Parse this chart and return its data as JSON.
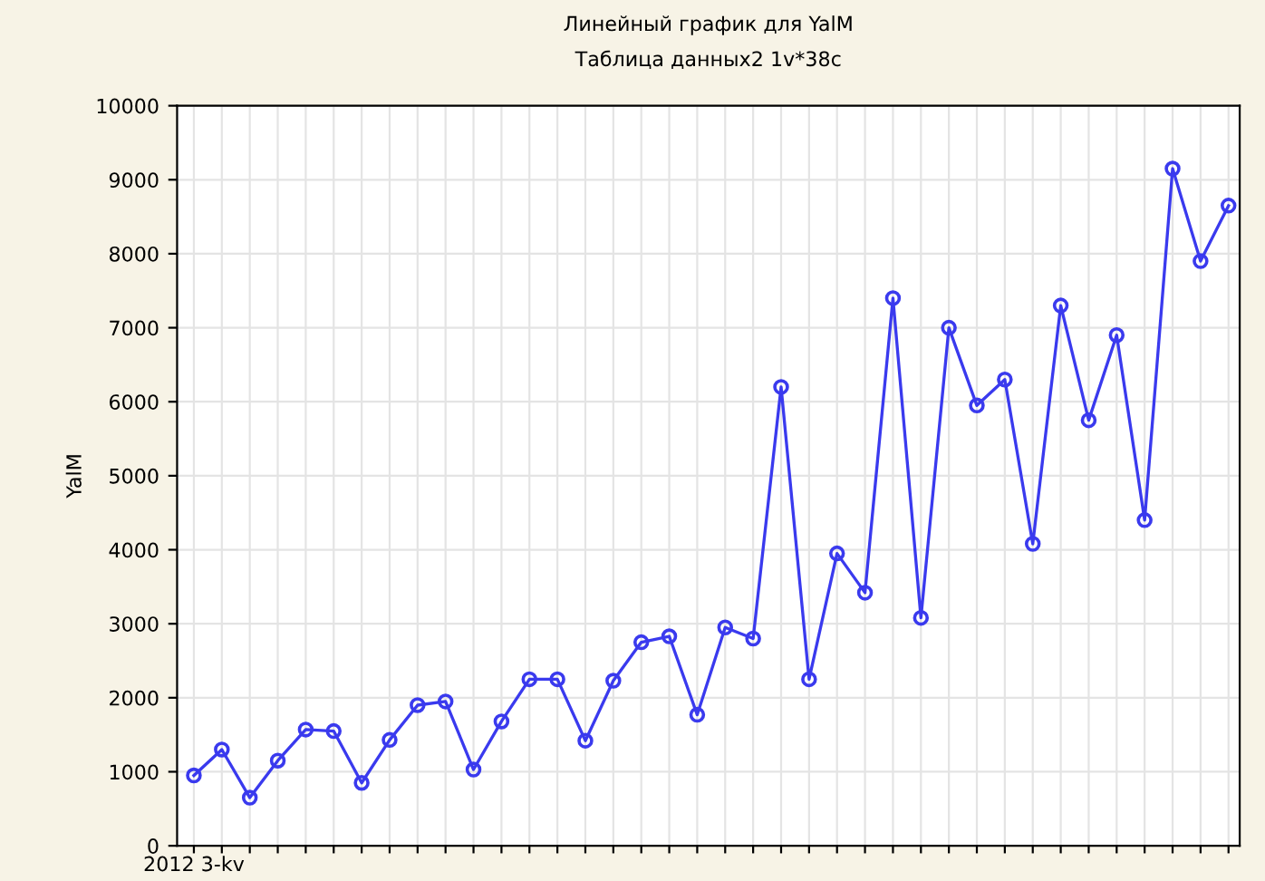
{
  "chart_data": {
    "type": "line",
    "title": "Линейный график для YalM",
    "subtitle": "Таблица данных2 1v*38c",
    "ylabel": "YalM",
    "categories": [
      "2012 3-kv",
      null,
      null,
      null,
      null,
      null,
      null,
      null,
      null,
      null,
      null,
      null,
      null,
      null,
      null,
      null,
      null,
      null,
      null,
      null,
      null,
      null,
      null,
      null,
      null,
      null,
      null,
      null,
      null,
      null,
      null,
      null,
      null,
      null,
      null,
      null,
      null,
      null
    ],
    "series": [
      {
        "color": "#3a3aee",
        "values": [
          950,
          1300,
          650,
          1150,
          1570,
          1550,
          850,
          1430,
          1900,
          1950,
          1030,
          1680,
          2250,
          2250,
          1420,
          2230,
          2750,
          2830,
          1770,
          2950,
          2800,
          6200,
          2250,
          3950,
          3420,
          7400,
          3080,
          7000,
          5950,
          6300,
          4080,
          7300,
          5750,
          6900,
          4400,
          9150,
          7900,
          8650
        ]
      }
    ],
    "ylim": [
      0,
      10000
    ],
    "yticks": [
      0,
      1000,
      2000,
      3000,
      4000,
      5000,
      6000,
      7000,
      8000,
      9000,
      10000
    ],
    "grid": true,
    "marker": "circle",
    "line_style": "solid"
  }
}
